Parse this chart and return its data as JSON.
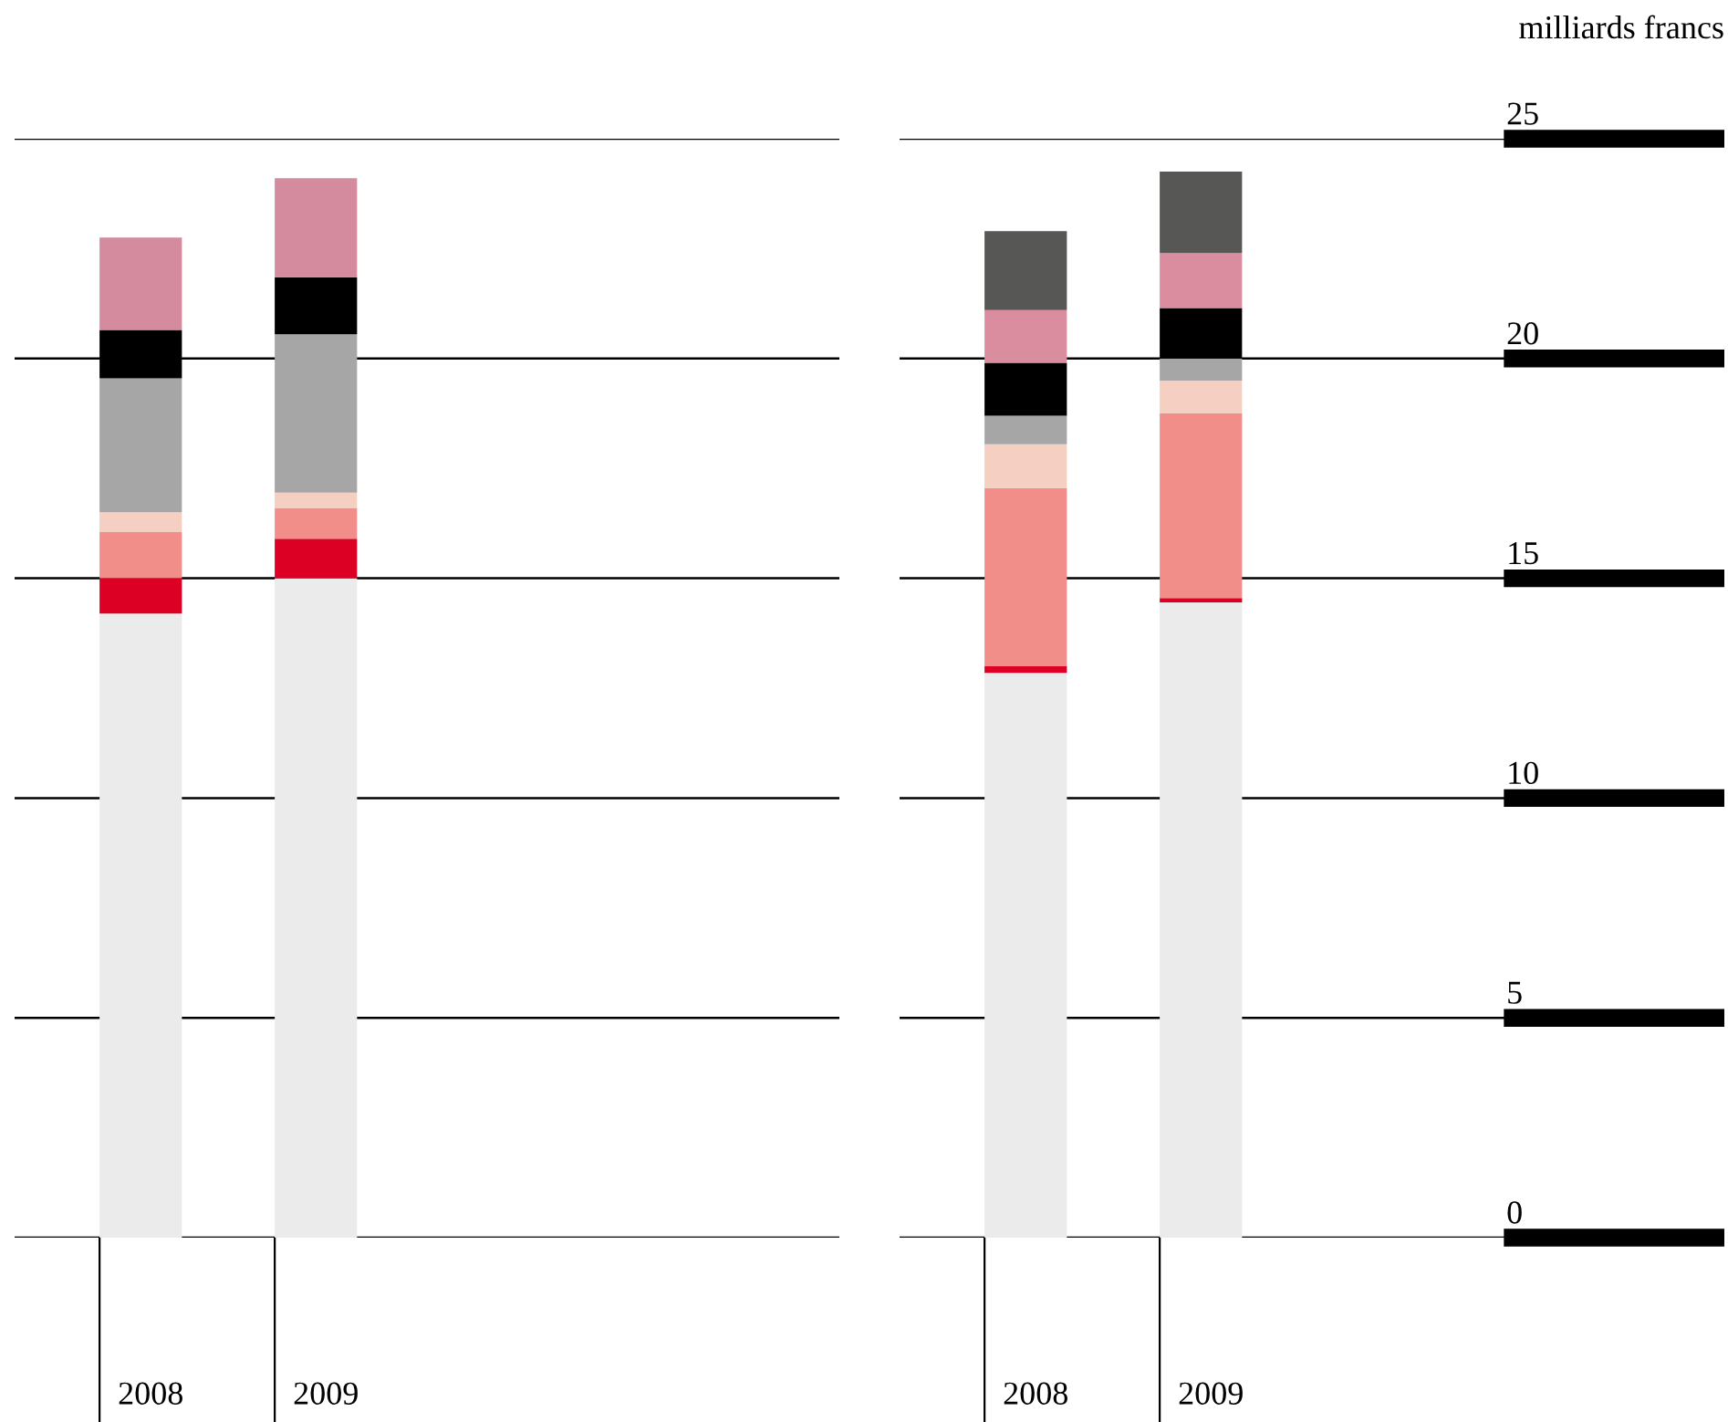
{
  "chart_data": [
    {
      "type": "bar",
      "stacked": true,
      "categories": [
        "2008",
        "2009"
      ],
      "ylim": [
        0,
        25
      ],
      "yticks": [
        0,
        5,
        10,
        15,
        20,
        25
      ],
      "grid": "y",
      "tick_labels": "x",
      "series": [
        {
          "color": "#ebebeb",
          "values": [
            14.2,
            15.0
          ]
        },
        {
          "color": "#dc0025",
          "values": [
            0.8,
            0.9
          ]
        },
        {
          "color": "#f28e8a",
          "values": [
            1.05,
            0.7
          ]
        },
        {
          "color": "#f6cfc3",
          "values": [
            0.45,
            0.35
          ]
        },
        {
          "color": "#a6a6a6",
          "values": [
            3.05,
            3.6
          ]
        },
        {
          "color": "#000000",
          "values": [
            1.1,
            1.3
          ]
        },
        {
          "color": "#d58b9e",
          "values": [
            2.1,
            2.25
          ]
        }
      ]
    },
    {
      "type": "bar",
      "stacked": true,
      "categories": [
        "2008",
        "2009"
      ],
      "ylim": [
        0,
        25
      ],
      "yticks": [
        0,
        5,
        10,
        15,
        20,
        25
      ],
      "grid": "y",
      "ylabel": "milliards francs",
      "series": [
        {
          "color": "#ebebeb",
          "values": [
            12.85,
            14.45
          ]
        },
        {
          "color": "#dc0025",
          "values": [
            0.15,
            0.1
          ]
        },
        {
          "color": "#f28e8a",
          "values": [
            4.05,
            4.2
          ]
        },
        {
          "color": "#f6cfc3",
          "values": [
            1.0,
            0.75
          ]
        },
        {
          "color": "#a6a6a6",
          "values": [
            0.65,
            0.5
          ]
        },
        {
          "color": "#000000",
          "values": [
            1.2,
            1.15
          ]
        },
        {
          "color": "#da8d9f",
          "values": [
            1.2,
            1.25
          ]
        },
        {
          "color": "#575756",
          "values": [
            1.8,
            1.85
          ]
        }
      ]
    }
  ]
}
